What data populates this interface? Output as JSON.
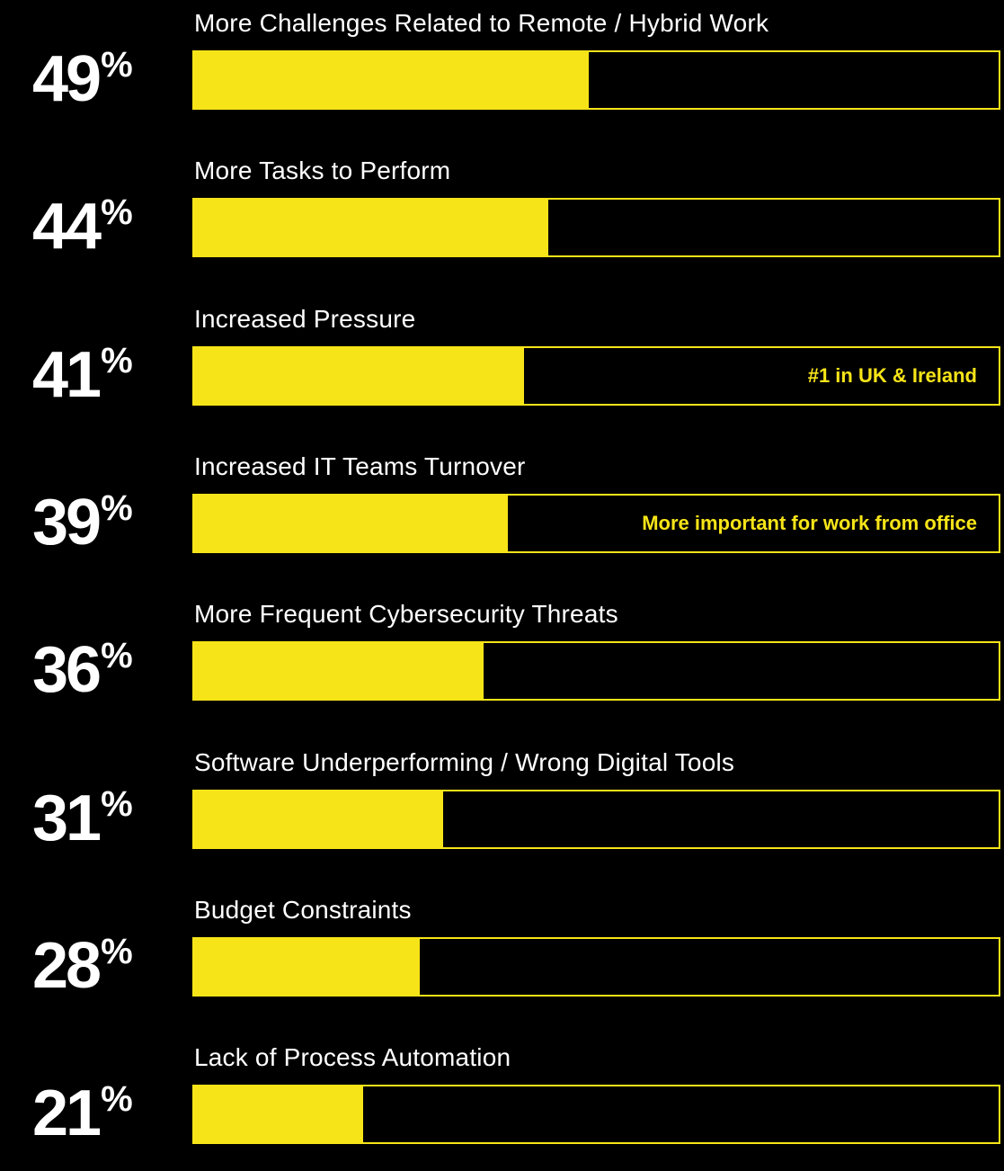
{
  "colors": {
    "background": "#000000",
    "accent": "#f7e418",
    "text": "#ffffff"
  },
  "chart_data": {
    "type": "bar",
    "orientation": "horizontal",
    "unit": "%",
    "xlim": [
      0,
      100
    ],
    "grid": false,
    "rows": [
      {
        "label": "More Challenges Related to Remote / Hybrid Work",
        "value": 49,
        "note": ""
      },
      {
        "label": "More Tasks to Perform",
        "value": 44,
        "note": ""
      },
      {
        "label": "Increased Pressure",
        "value": 41,
        "note": "#1 in UK & Ireland"
      },
      {
        "label": "Increased IT Teams Turnover",
        "value": 39,
        "note": "More important for work from office"
      },
      {
        "label": "More Frequent Cybersecurity Threats",
        "value": 36,
        "note": ""
      },
      {
        "label": "Software Underperforming / Wrong Digital Tools",
        "value": 31,
        "note": ""
      },
      {
        "label": "Budget Constraints",
        "value": 28,
        "note": ""
      },
      {
        "label": "Lack of Process Automation",
        "value": 21,
        "note": ""
      }
    ]
  }
}
